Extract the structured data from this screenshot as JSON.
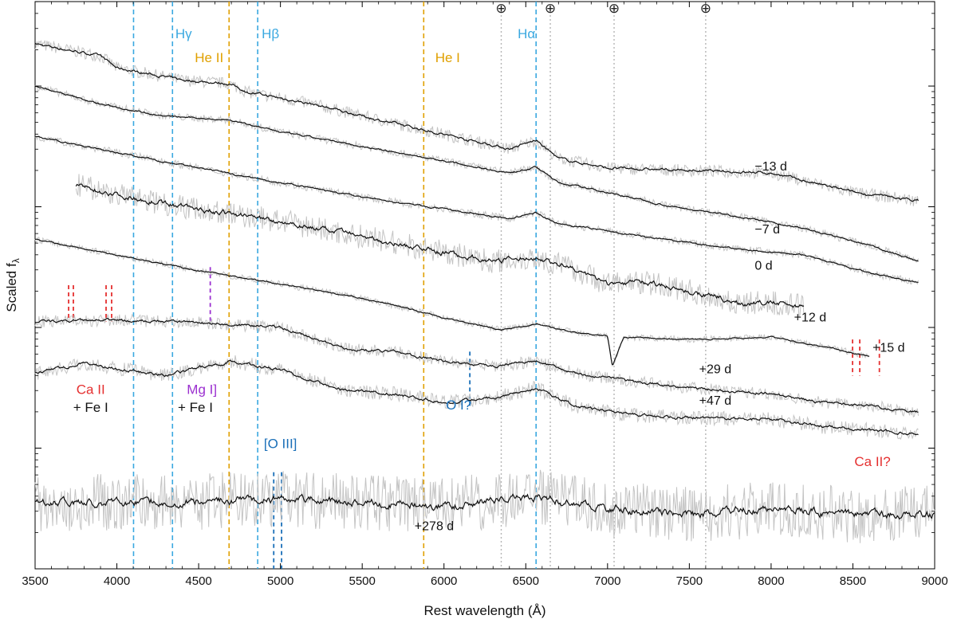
{
  "chart_data": {
    "type": "line",
    "title": "",
    "xlabel": "Rest wavelength (Å)",
    "ylabel_main": "Scaled f",
    "ylabel_sub": "λ",
    "xlim": [
      3500,
      9000
    ],
    "x_ticks": [
      3500,
      4000,
      4500,
      5000,
      5500,
      6000,
      6500,
      7000,
      7500,
      8000,
      8500,
      9000
    ],
    "x_tick_labels": [
      "3500",
      "4000",
      "4500",
      "5000",
      "5500",
      "6000",
      "6500",
      "7000",
      "7500",
      "8000",
      "8500",
      "9000"
    ],
    "y_scale": "log",
    "y_log_range": [
      0,
      4.7
    ],
    "y_major_ticks": [
      1,
      2,
      3,
      4
    ],
    "y_minor_ticks_per_decade": [
      2,
      3,
      4,
      5,
      6,
      7,
      8,
      9
    ],
    "line_markers": [
      {
        "label": "Hγ",
        "wavelength": 4340,
        "color": "#3aa8e0",
        "style": "dashed",
        "labelX": 4340
      },
      {
        "label": "Hβ",
        "wavelength": 4861,
        "color": "#3aa8e0",
        "style": "dashed",
        "labelX": 4861
      },
      {
        "label": "Hα",
        "wavelength": 6563,
        "color": "#3aa8e0",
        "style": "dashed",
        "labelX": 6563
      },
      {
        "label": "",
        "wavelength": 4102,
        "color": "#3aa8e0",
        "style": "dashed"
      },
      {
        "label": "He II",
        "wavelength": 4686,
        "color": "#e0a000",
        "style": "dashed"
      },
      {
        "label": "He I",
        "wavelength": 5876,
        "color": "#e0a000",
        "style": "dashed"
      }
    ],
    "telluric_markers": [
      {
        "symbol": "⊕",
        "wavelength": 6350
      },
      {
        "symbol": "⊕",
        "wavelength": 6650
      },
      {
        "symbol": "⊕",
        "wavelength": 7040
      },
      {
        "symbol": "⊕",
        "wavelength": 7600
      }
    ],
    "short_markers": [
      {
        "group": "Ca II",
        "wavelengths": [
          3705,
          3734,
          3934,
          3968
        ],
        "color": "#e53030",
        "logY": [
          2.05,
          2.35
        ]
      },
      {
        "group": "Mg I]",
        "wavelengths": [
          4571
        ],
        "color": "#9b30d0",
        "logY": [
          2.05,
          2.5
        ]
      },
      {
        "group": "O I?",
        "wavelengths": [
          6158
        ],
        "color": "#1a6fb8",
        "logY": [
          1.35,
          1.8
        ]
      },
      {
        "group": "[O III]",
        "wavelengths": [
          4959,
          5007
        ],
        "color": "#1a6fb8",
        "logY": [
          0.0,
          0.8
        ]
      },
      {
        "group": "Ca II?",
        "wavelengths": [
          8498,
          8542,
          8662
        ],
        "color": "#e53030",
        "logY": [
          1.6,
          1.9
        ]
      }
    ],
    "line_annotations": [
      {
        "text": "Ca II",
        "x": 3840,
        "logY": 1.45,
        "color": "#e53030"
      },
      {
        "text": "+ Fe I",
        "x": 3840,
        "logY": 1.3,
        "color": "#111111"
      },
      {
        "text": "Mg I]",
        "x": 4520,
        "logY": 1.45,
        "color": "#9b30d0"
      },
      {
        "text": "+ Fe I",
        "x": 4480,
        "logY": 1.3,
        "color": "#111111"
      },
      {
        "text": "O I?",
        "x": 6090,
        "logY": 1.32,
        "color": "#1a6fb8"
      },
      {
        "text": "[O III]",
        "x": 5000,
        "logY": 1.0,
        "color": "#1a6fb8"
      },
      {
        "text": "Ca II?",
        "x": 8620,
        "logY": 0.85,
        "color": "#e53030"
      }
    ],
    "series": [
      {
        "name": "−13 d",
        "x": [
          3500,
          3900,
          4000,
          4400,
          4686,
          4800,
          5200,
          5600,
          6000,
          6400,
          6563,
          6700,
          7000,
          7500,
          8000,
          8500,
          8900
        ],
        "logY": [
          4.35,
          4.25,
          4.15,
          4.05,
          4.02,
          3.95,
          3.85,
          3.72,
          3.6,
          3.48,
          3.55,
          3.4,
          3.32,
          3.3,
          3.28,
          3.12,
          3.05
        ],
        "amp": 0.03,
        "label": "−13 d",
        "labelX": 7900,
        "labelLogY": 3.3
      },
      {
        "name": "−7 d",
        "x": [
          3500,
          3900,
          4300,
          4686,
          5000,
          5500,
          6000,
          6400,
          6563,
          6700,
          7000,
          7400,
          7800,
          8200,
          8600,
          8900
        ],
        "logY": [
          4.0,
          3.85,
          3.75,
          3.72,
          3.62,
          3.5,
          3.38,
          3.28,
          3.33,
          3.2,
          3.12,
          3.0,
          2.92,
          2.82,
          2.68,
          2.55
        ],
        "amp": 0.018,
        "label": "−7 d",
        "labelX": 7900,
        "labelLogY": 2.78
      },
      {
        "name": "0 d",
        "x": [
          3500,
          4000,
          4500,
          5000,
          5500,
          6000,
          6400,
          6563,
          6700,
          7000,
          7400,
          7800,
          8200,
          8600,
          8900
        ],
        "logY": [
          3.58,
          3.45,
          3.32,
          3.2,
          3.08,
          2.98,
          2.9,
          2.95,
          2.86,
          2.8,
          2.72,
          2.65,
          2.6,
          2.45,
          2.37
        ],
        "amp": 0.018,
        "label": "0 d",
        "labelX": 7900,
        "labelLogY": 2.48
      },
      {
        "name": "+12 d",
        "x": [
          3750,
          4000,
          4500,
          5000,
          5500,
          6000,
          6300,
          6563,
          6800,
          7000,
          7200,
          7500,
          7800,
          8000,
          8200
        ],
        "logY": [
          3.18,
          3.1,
          2.98,
          2.88,
          2.75,
          2.62,
          2.55,
          2.58,
          2.48,
          2.36,
          2.38,
          2.3,
          2.2,
          2.2,
          2.18
        ],
        "amp": 0.06,
        "label": "+12 d",
        "labelX": 8140,
        "labelLogY": 2.05
      },
      {
        "name": "+15 d",
        "x": [
          3500,
          4000,
          4500,
          5000,
          5500,
          5800,
          6000,
          6350,
          6563,
          6800,
          7000,
          7030,
          7100,
          7500,
          8000,
          8400,
          8600
        ],
        "logY": [
          2.73,
          2.6,
          2.47,
          2.36,
          2.24,
          2.15,
          2.08,
          1.98,
          2.03,
          1.96,
          1.93,
          1.68,
          1.92,
          1.9,
          1.92,
          1.82,
          1.76
        ],
        "amp": 0.015,
        "label": "+15 d",
        "labelX": 8620,
        "labelLogY": 1.8
      },
      {
        "name": "+29 d",
        "x": [
          3500,
          4000,
          4500,
          5000,
          5400,
          5700,
          6000,
          6300,
          6563,
          6800,
          7100,
          7500,
          8000,
          8300,
          8600,
          8900
        ],
        "logY": [
          2.05,
          2.06,
          2.04,
          2.0,
          1.82,
          1.8,
          1.72,
          1.68,
          1.72,
          1.62,
          1.56,
          1.5,
          1.45,
          1.38,
          1.35,
          1.3
        ],
        "amp": 0.03,
        "label": "+29 d",
        "labelX": 7560,
        "labelLogY": 1.62
      },
      {
        "name": "+47 d",
        "x": [
          3500,
          3800,
          4000,
          4300,
          4686,
          5000,
          5400,
          5700,
          6000,
          6300,
          6563,
          6800,
          7100,
          7500,
          8000,
          8300,
          8600,
          8900
        ],
        "logY": [
          1.62,
          1.7,
          1.66,
          1.6,
          1.72,
          1.65,
          1.48,
          1.45,
          1.38,
          1.42,
          1.5,
          1.35,
          1.28,
          1.25,
          1.24,
          1.18,
          1.15,
          1.12
        ],
        "amp": 0.035,
        "label": "+47 d",
        "labelX": 7560,
        "labelLogY": 1.36
      },
      {
        "name": "+278 d",
        "x": [
          3500,
          4000,
          4500,
          5000,
          5500,
          6000,
          6563,
          7000,
          7500,
          8000,
          8500,
          9000
        ],
        "logY": [
          0.55,
          0.55,
          0.56,
          0.58,
          0.55,
          0.52,
          0.6,
          0.5,
          0.45,
          0.5,
          0.45,
          0.45
        ],
        "amp": 0.09,
        "label": "+278 d",
        "labelX": 5820,
        "labelLogY": 0.32
      }
    ]
  }
}
